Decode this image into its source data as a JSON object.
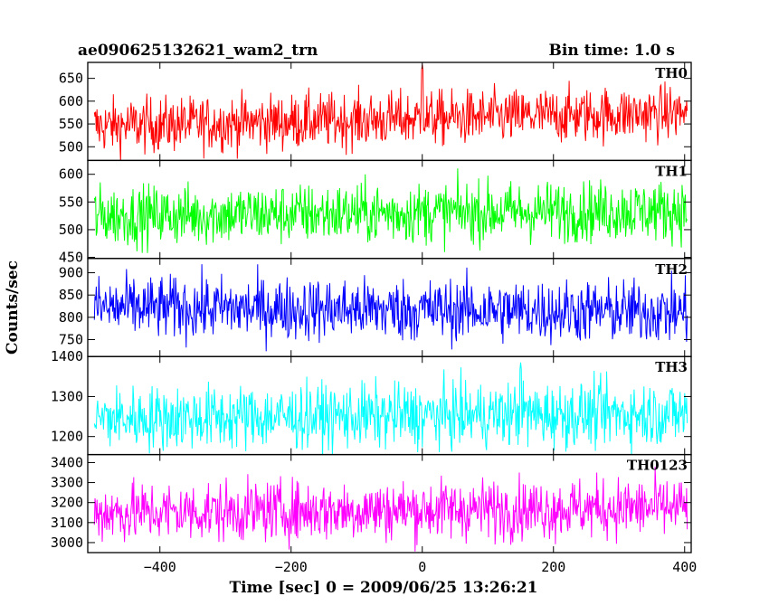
{
  "header": {
    "left_title": "ae090625132621_wam2_trn",
    "right_title": "Bin time: 1.0 s"
  },
  "axes": {
    "xlabel": "Time [sec] 0 = 2009/06/25 13:26:21",
    "ylabel": "Counts/sec"
  },
  "chart_data": {
    "type": "line",
    "x_range": [
      -510,
      410
    ],
    "x_ticks": [
      -400,
      -200,
      0,
      200,
      400
    ],
    "x_tick_labels": [
      "−400",
      "−200",
      "0",
      "200",
      "400"
    ],
    "bin_time_s": 1.0,
    "panels": [
      {
        "name": "TH0",
        "color": "#ff0000",
        "ylim": [
          470,
          685
        ],
        "yticks": [
          500,
          550,
          600,
          650
        ],
        "mean_start": 545,
        "mean_end": 575,
        "amplitude": 30,
        "features": [
          {
            "x": 0,
            "y": 680,
            "note": "spike near t=0"
          }
        ]
      },
      {
        "name": "TH1",
        "color": "#00ff00",
        "ylim": [
          448,
          625
        ],
        "yticks": [
          450,
          500,
          550,
          600
        ],
        "mean_start": 525,
        "mean_end": 535,
        "amplitude": 27,
        "features": []
      },
      {
        "name": "TH2",
        "color": "#0000ff",
        "ylim": [
          712,
          932
        ],
        "yticks": [
          750,
          800,
          850,
          900
        ],
        "mean_start": 822,
        "mean_end": 812,
        "amplitude": 35,
        "features": []
      },
      {
        "name": "TH3",
        "color": "#00ffff",
        "ylim": [
          1155,
          1400
        ],
        "yticks": [
          1200,
          1300,
          1400
        ],
        "mean_start": 1245,
        "mean_end": 1258,
        "amplitude": 40,
        "features": [
          {
            "x": 150,
            "y": 1385,
            "note": "peak"
          }
        ]
      },
      {
        "name": "TH0123",
        "color": "#ff00ff",
        "ylim": [
          2950,
          3440
        ],
        "yticks": [
          3000,
          3100,
          3200,
          3300,
          3400
        ],
        "mean_start": 3150,
        "mean_end": 3175,
        "amplitude": 75,
        "features": []
      }
    ]
  }
}
